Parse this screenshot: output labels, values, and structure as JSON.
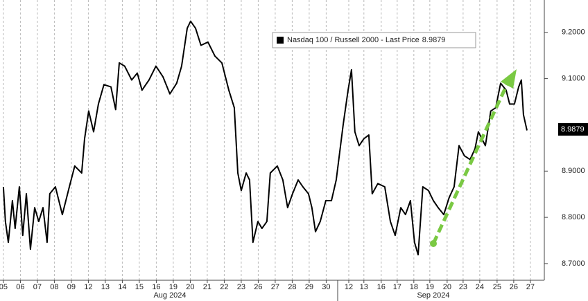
{
  "chart_data": {
    "type": "line",
    "series": [
      {
        "name": "Nasdaq 100 / Russell 2000 - Last Price",
        "color": "#000000",
        "x": [
          0,
          0.12,
          0.29,
          0.53,
          0.69,
          0.94,
          1.14,
          1.35,
          1.59,
          1.84,
          2.08,
          2.33,
          2.57,
          2.73,
          3.06,
          3.47,
          3.88,
          4.2,
          4.61,
          4.78,
          5.02,
          5.31,
          5.59,
          5.92,
          6.33,
          6.61,
          6.82,
          7.14,
          7.55,
          7.88,
          8.16,
          8.57,
          8.98,
          9.39,
          9.8,
          10.2,
          10.49,
          10.82,
          11.02,
          11.31,
          11.63,
          12.04,
          12.45,
          12.86,
          13.27,
          13.59,
          13.8,
          14,
          14.29,
          14.49,
          14.69,
          14.98,
          15.22,
          15.51,
          15.71,
          16.12,
          16.45,
          16.73,
          17.02,
          17.35,
          17.63,
          17.96,
          18.16,
          18.37,
          18.65,
          18.98,
          19.31,
          19.59,
          20,
          20.29,
          20.49,
          20.69,
          20.94,
          21.22,
          21.51,
          21.71,
          22.04,
          22.45,
          22.78,
          23.06,
          23.39,
          23.67,
          23.96,
          24.2,
          24.41,
          24.69,
          25.02,
          25.31,
          25.59,
          25.92,
          26.24,
          26.53,
          26.82,
          27.14,
          27.47,
          27.76,
          27.96,
          28.37,
          28.69,
          28.98,
          29.27,
          29.59,
          29.8,
          30.08,
          30.33,
          30.49,
          30.61,
          30.82
        ],
        "values": [
          8.866,
          8.791,
          8.746,
          8.836,
          8.776,
          8.866,
          8.761,
          8.851,
          8.731,
          8.821,
          8.791,
          8.821,
          8.746,
          8.851,
          8.866,
          8.806,
          8.866,
          8.911,
          8.896,
          8.97,
          9.03,
          8.985,
          9.045,
          9.087,
          9.082,
          9.033,
          9.134,
          9.127,
          9.097,
          9.112,
          9.075,
          9.097,
          9.127,
          9.104,
          9.067,
          9.09,
          9.127,
          9.209,
          9.224,
          9.209,
          9.172,
          9.179,
          9.149,
          9.134,
          9.075,
          9.037,
          8.896,
          8.858,
          8.896,
          8.881,
          8.746,
          8.791,
          8.776,
          8.791,
          8.896,
          8.911,
          8.881,
          8.821,
          8.851,
          8.881,
          8.866,
          8.851,
          8.821,
          8.769,
          8.791,
          8.836,
          8.836,
          8.881,
          9.0,
          9.075,
          9.119,
          8.985,
          8.955,
          8.97,
          8.978,
          8.851,
          8.873,
          8.866,
          8.791,
          8.761,
          8.821,
          8.806,
          8.836,
          8.746,
          8.719,
          8.866,
          8.858,
          8.836,
          8.821,
          8.806,
          8.843,
          8.866,
          8.955,
          8.933,
          8.925,
          8.948,
          8.985,
          8.955,
          9.03,
          9.037,
          9.09,
          9.075,
          9.045,
          9.045,
          9.082,
          9.097,
          9.022,
          8.9879
        ]
      }
    ],
    "last_price": 8.9879,
    "xlim": [
      -0.2,
      31.84
    ],
    "xticks": [
      {
        "value": 0,
        "label": "05"
      },
      {
        "value": 1,
        "label": "06"
      },
      {
        "value": 2,
        "label": "07"
      },
      {
        "value": 3,
        "label": "08"
      },
      {
        "value": 4,
        "label": "09"
      },
      {
        "value": 5,
        "label": "12"
      },
      {
        "value": 6,
        "label": "13"
      },
      {
        "value": 7,
        "label": "14"
      },
      {
        "value": 8,
        "label": "15"
      },
      {
        "value": 9,
        "label": "16"
      },
      {
        "value": 10,
        "label": "19"
      },
      {
        "value": 11,
        "label": "20"
      },
      {
        "value": 12,
        "label": "21"
      },
      {
        "value": 13,
        "label": "22"
      },
      {
        "value": 14,
        "label": "23"
      },
      {
        "value": 15,
        "label": "26"
      },
      {
        "value": 16,
        "label": "27"
      },
      {
        "value": 17,
        "label": "28"
      },
      {
        "value": 18,
        "label": "29"
      },
      {
        "value": 19,
        "label": "30"
      },
      {
        "value": 20.33,
        "label": "12"
      },
      {
        "value": 21.22,
        "label": "13"
      },
      {
        "value": 22.24,
        "label": "16"
      },
      {
        "value": 23.18,
        "label": "17"
      },
      {
        "value": 24.16,
        "label": "18"
      },
      {
        "value": 25.1,
        "label": "19"
      },
      {
        "value": 26.12,
        "label": "20"
      },
      {
        "value": 27.06,
        "label": "23"
      },
      {
        "value": 28.04,
        "label": "24"
      },
      {
        "value": 29.06,
        "label": "25"
      },
      {
        "value": 30.04,
        "label": "26"
      },
      {
        "value": 31.02,
        "label": "27"
      }
    ],
    "ylim": [
      8.664,
      9.27
    ],
    "yticks": [
      {
        "value": 8.7,
        "label": "8.7000"
      },
      {
        "value": 8.8,
        "label": "8.8000"
      },
      {
        "value": 8.9,
        "label": "8.9000"
      },
      {
        "value": 9.1,
        "label": "9.1000"
      },
      {
        "value": 9.2,
        "label": "9.2000"
      }
    ],
    "month_labels": [
      "Aug 2024",
      "Sep 2024"
    ],
    "grid": true
  }
}
